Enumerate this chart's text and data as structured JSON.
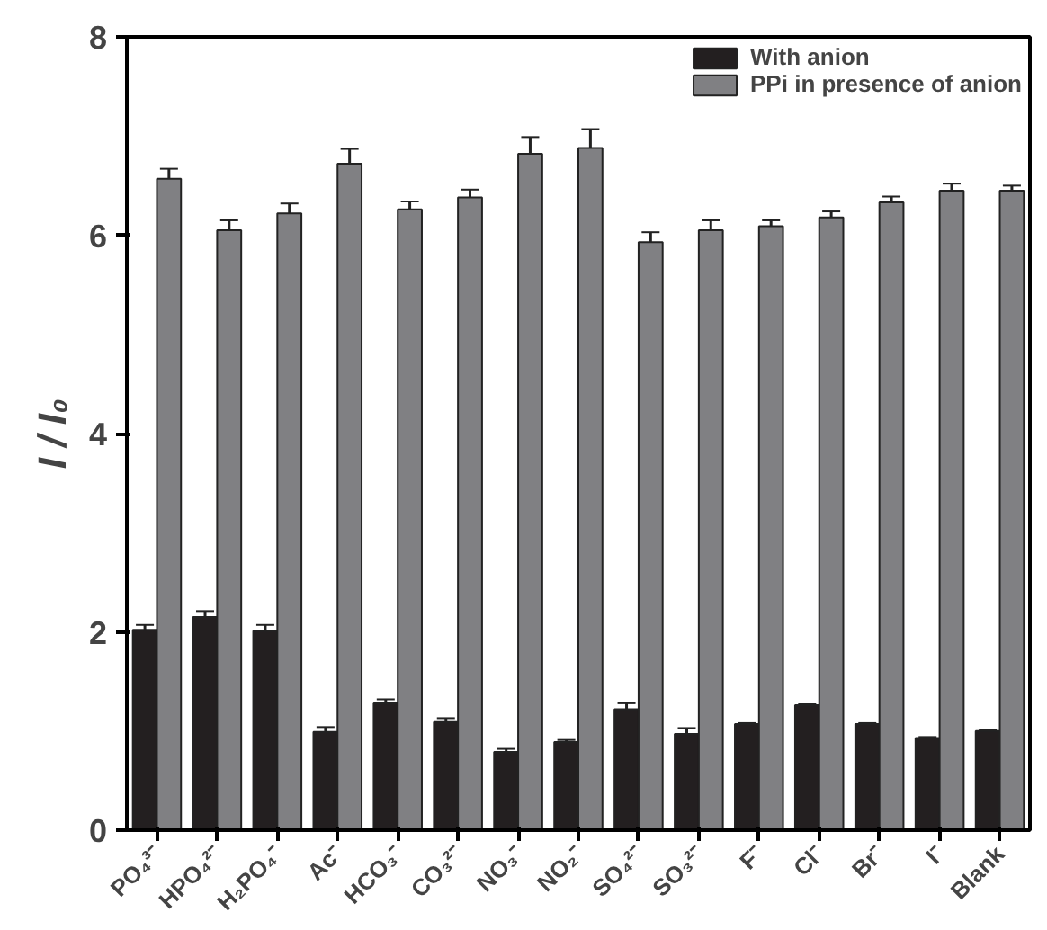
{
  "chart_data": {
    "type": "bar",
    "ylabel": "I / I₀",
    "categories": [
      "PO₄³⁻",
      "HPO₄²⁻",
      "H₂PO₄⁻",
      "Ac⁻",
      "HCO₃⁻",
      "CO₃²⁻",
      "NO₃⁻",
      "NO₂⁻",
      "SO₄²⁻",
      "SO₃²⁻",
      "F⁻",
      "Cl⁻",
      "Br⁻",
      "I⁻",
      "Blank"
    ],
    "series": [
      {
        "name": "With anion",
        "color": "#231f20",
        "values": [
          2.02,
          2.15,
          2.01,
          0.99,
          1.28,
          1.09,
          0.79,
          0.89,
          1.22,
          0.97,
          1.07,
          1.26,
          1.07,
          0.93,
          1.0
        ],
        "errors": [
          0.05,
          0.06,
          0.06,
          0.05,
          0.04,
          0.04,
          0.03,
          0.02,
          0.06,
          0.06,
          0.01,
          0.01,
          0.01,
          0.01,
          0.01
        ]
      },
      {
        "name": "PPi in presence of anion",
        "color": "#808083",
        "values": [
          6.57,
          6.05,
          6.22,
          6.72,
          6.26,
          6.38,
          6.82,
          6.88,
          5.93,
          6.05,
          6.09,
          6.18,
          6.33,
          6.45,
          6.45
        ],
        "errors": [
          0.1,
          0.1,
          0.1,
          0.15,
          0.08,
          0.08,
          0.17,
          0.19,
          0.1,
          0.1,
          0.06,
          0.06,
          0.06,
          0.07,
          0.05
        ]
      }
    ],
    "ylim": [
      0,
      8
    ],
    "yticks": [
      0,
      2,
      4,
      6,
      8
    ],
    "grid": false,
    "legend": "top right"
  }
}
